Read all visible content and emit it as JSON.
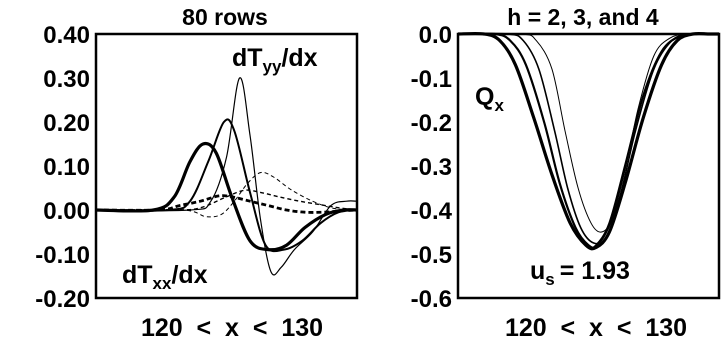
{
  "chart_data": [
    {
      "type": "line",
      "title": "80 rows",
      "xlabel": "120  <  x  <  130",
      "ylabel": "",
      "xlim": [
        120,
        130
      ],
      "ylim": [
        -0.2,
        0.4
      ],
      "yticks": [
        "0.40",
        "0.30",
        "0.20",
        "0.10",
        "0.00",
        "-0.10",
        "-0.20"
      ],
      "ytick_values": [
        0.4,
        0.3,
        0.2,
        0.1,
        0.0,
        -0.1,
        -0.2
      ],
      "annotations": {
        "dTyy": {
          "base": "dT",
          "sub": "yy",
          "tail": "/dx"
        },
        "dTxx": {
          "base": "dT",
          "sub": "xx",
          "tail": "/dx"
        }
      },
      "series": [
        {
          "group": "dTyy",
          "width": 3.2,
          "style": "solid",
          "x": [
            120,
            122.2,
            123.0,
            123.6,
            124.1,
            124.6,
            125.2,
            125.9,
            126.6,
            127.3,
            128.0,
            128.8,
            129.5,
            130
          ],
          "y": [
            0,
            0,
            0.03,
            0.11,
            0.15,
            0.13,
            0.03,
            -0.07,
            -0.09,
            -0.08,
            -0.04,
            -0.01,
            0.0,
            0
          ]
        },
        {
          "group": "dTyy",
          "width": 2.0,
          "style": "solid",
          "x": [
            120,
            122.8,
            123.6,
            124.3,
            124.9,
            125.3,
            125.9,
            126.5,
            127.2,
            127.9,
            128.6,
            129.3,
            130
          ],
          "y": [
            0,
            0,
            0.02,
            0.11,
            0.2,
            0.18,
            0.04,
            -0.08,
            -0.09,
            -0.07,
            -0.03,
            -0.005,
            0
          ]
        },
        {
          "group": "dTyy",
          "width": 1.2,
          "style": "solid",
          "x": [
            120,
            123.6,
            124.4,
            125.0,
            125.5,
            125.9,
            126.3,
            126.7,
            127.1,
            127.6,
            128.3,
            129.0,
            129.6,
            130
          ],
          "y": [
            0,
            0,
            0.02,
            0.12,
            0.3,
            0.17,
            -0.02,
            -0.14,
            -0.13,
            -0.09,
            -0.05,
            0.01,
            0.02,
            0.02
          ]
        },
        {
          "group": "dTxx",
          "width": 2.8,
          "style": "dashed",
          "x": [
            120,
            122.4,
            123.2,
            124.0,
            124.7,
            125.2,
            125.9,
            126.6,
            127.3,
            128.0,
            128.7,
            129.4,
            130
          ],
          "y": [
            0,
            0,
            0.01,
            0.02,
            0.032,
            0.03,
            0.02,
            0.01,
            0.0,
            -0.005,
            -0.005,
            -0.002,
            0
          ]
        },
        {
          "group": "dTxx",
          "width": 1.4,
          "style": "dashed",
          "x": [
            120,
            123.0,
            124.0,
            125.0,
            125.7,
            126.3,
            127.0,
            127.8,
            128.6,
            129.3,
            130
          ],
          "y": [
            0,
            0,
            0.005,
            0.03,
            0.045,
            0.04,
            0.03,
            0.02,
            0.012,
            0.005,
            0
          ]
        },
        {
          "group": "dTxx",
          "width": 1.0,
          "style": "dashed",
          "x": [
            120,
            123.3,
            124.2,
            124.8,
            125.3,
            125.8,
            126.3,
            126.8,
            127.5,
            128.3,
            129.0,
            129.7,
            130
          ],
          "y": [
            0,
            0,
            -0.015,
            -0.01,
            0.02,
            0.06,
            0.085,
            0.075,
            0.045,
            0.02,
            0.005,
            0,
            0
          ]
        }
      ]
    },
    {
      "type": "line",
      "title": "h = 2, 3, and 4",
      "xlabel": "120  <  x  <  130",
      "ylabel": "",
      "xlim": [
        120,
        130
      ],
      "ylim": [
        -0.6,
        0.0
      ],
      "yticks": [
        "0.0",
        "-0.1",
        "-0.2",
        "-0.3",
        "-0.4",
        "-0.5",
        "-0.6"
      ],
      "ytick_values": [
        0.0,
        -0.1,
        -0.2,
        -0.3,
        -0.4,
        -0.5,
        -0.6
      ],
      "annotations": {
        "Qx": {
          "base": "Q",
          "sub": "x"
        },
        "us": {
          "base": "u",
          "sub": "s",
          "tail": "= 1.93"
        }
      },
      "series": [
        {
          "width": 3.2,
          "style": "solid",
          "x": [
            120,
            121.0,
            121.6,
            122.2,
            122.9,
            123.6,
            124.3,
            124.9,
            125.3,
            125.8,
            126.4,
            127.1,
            127.8,
            128.4,
            129.0,
            129.6,
            130
          ],
          "y": [
            0,
            0,
            -0.015,
            -0.07,
            -0.19,
            -0.32,
            -0.43,
            -0.48,
            -0.485,
            -0.45,
            -0.34,
            -0.19,
            -0.07,
            -0.015,
            0,
            0,
            0
          ]
        },
        {
          "width": 2.2,
          "style": "solid",
          "x": [
            120,
            121.4,
            122.0,
            122.6,
            123.3,
            123.9,
            124.5,
            125.0,
            125.3,
            125.8,
            126.4,
            127.1,
            127.8,
            128.5,
            129.2,
            130
          ],
          "y": [
            0,
            0,
            -0.015,
            -0.07,
            -0.2,
            -0.34,
            -0.44,
            -0.48,
            -0.48,
            -0.43,
            -0.3,
            -0.14,
            -0.04,
            -0.005,
            0,
            0
          ]
        },
        {
          "width": 1.6,
          "style": "solid",
          "x": [
            120,
            121.9,
            122.5,
            123.1,
            123.7,
            124.2,
            124.7,
            125.2,
            125.6,
            126.2,
            126.8,
            127.5,
            128.2,
            128.9,
            130
          ],
          "y": [
            0,
            0,
            -0.015,
            -0.08,
            -0.22,
            -0.35,
            -0.44,
            -0.475,
            -0.46,
            -0.37,
            -0.22,
            -0.08,
            -0.015,
            0,
            0
          ]
        },
        {
          "width": 1.0,
          "style": "solid",
          "x": [
            120,
            122.4,
            123.0,
            123.6,
            124.1,
            124.6,
            125.1,
            125.5,
            125.9,
            126.4,
            126.9,
            127.5,
            128.1,
            128.8,
            130
          ],
          "y": [
            0,
            0,
            -0.015,
            -0.08,
            -0.22,
            -0.35,
            -0.43,
            -0.45,
            -0.42,
            -0.31,
            -0.17,
            -0.05,
            -0.01,
            0,
            0
          ]
        }
      ]
    }
  ]
}
